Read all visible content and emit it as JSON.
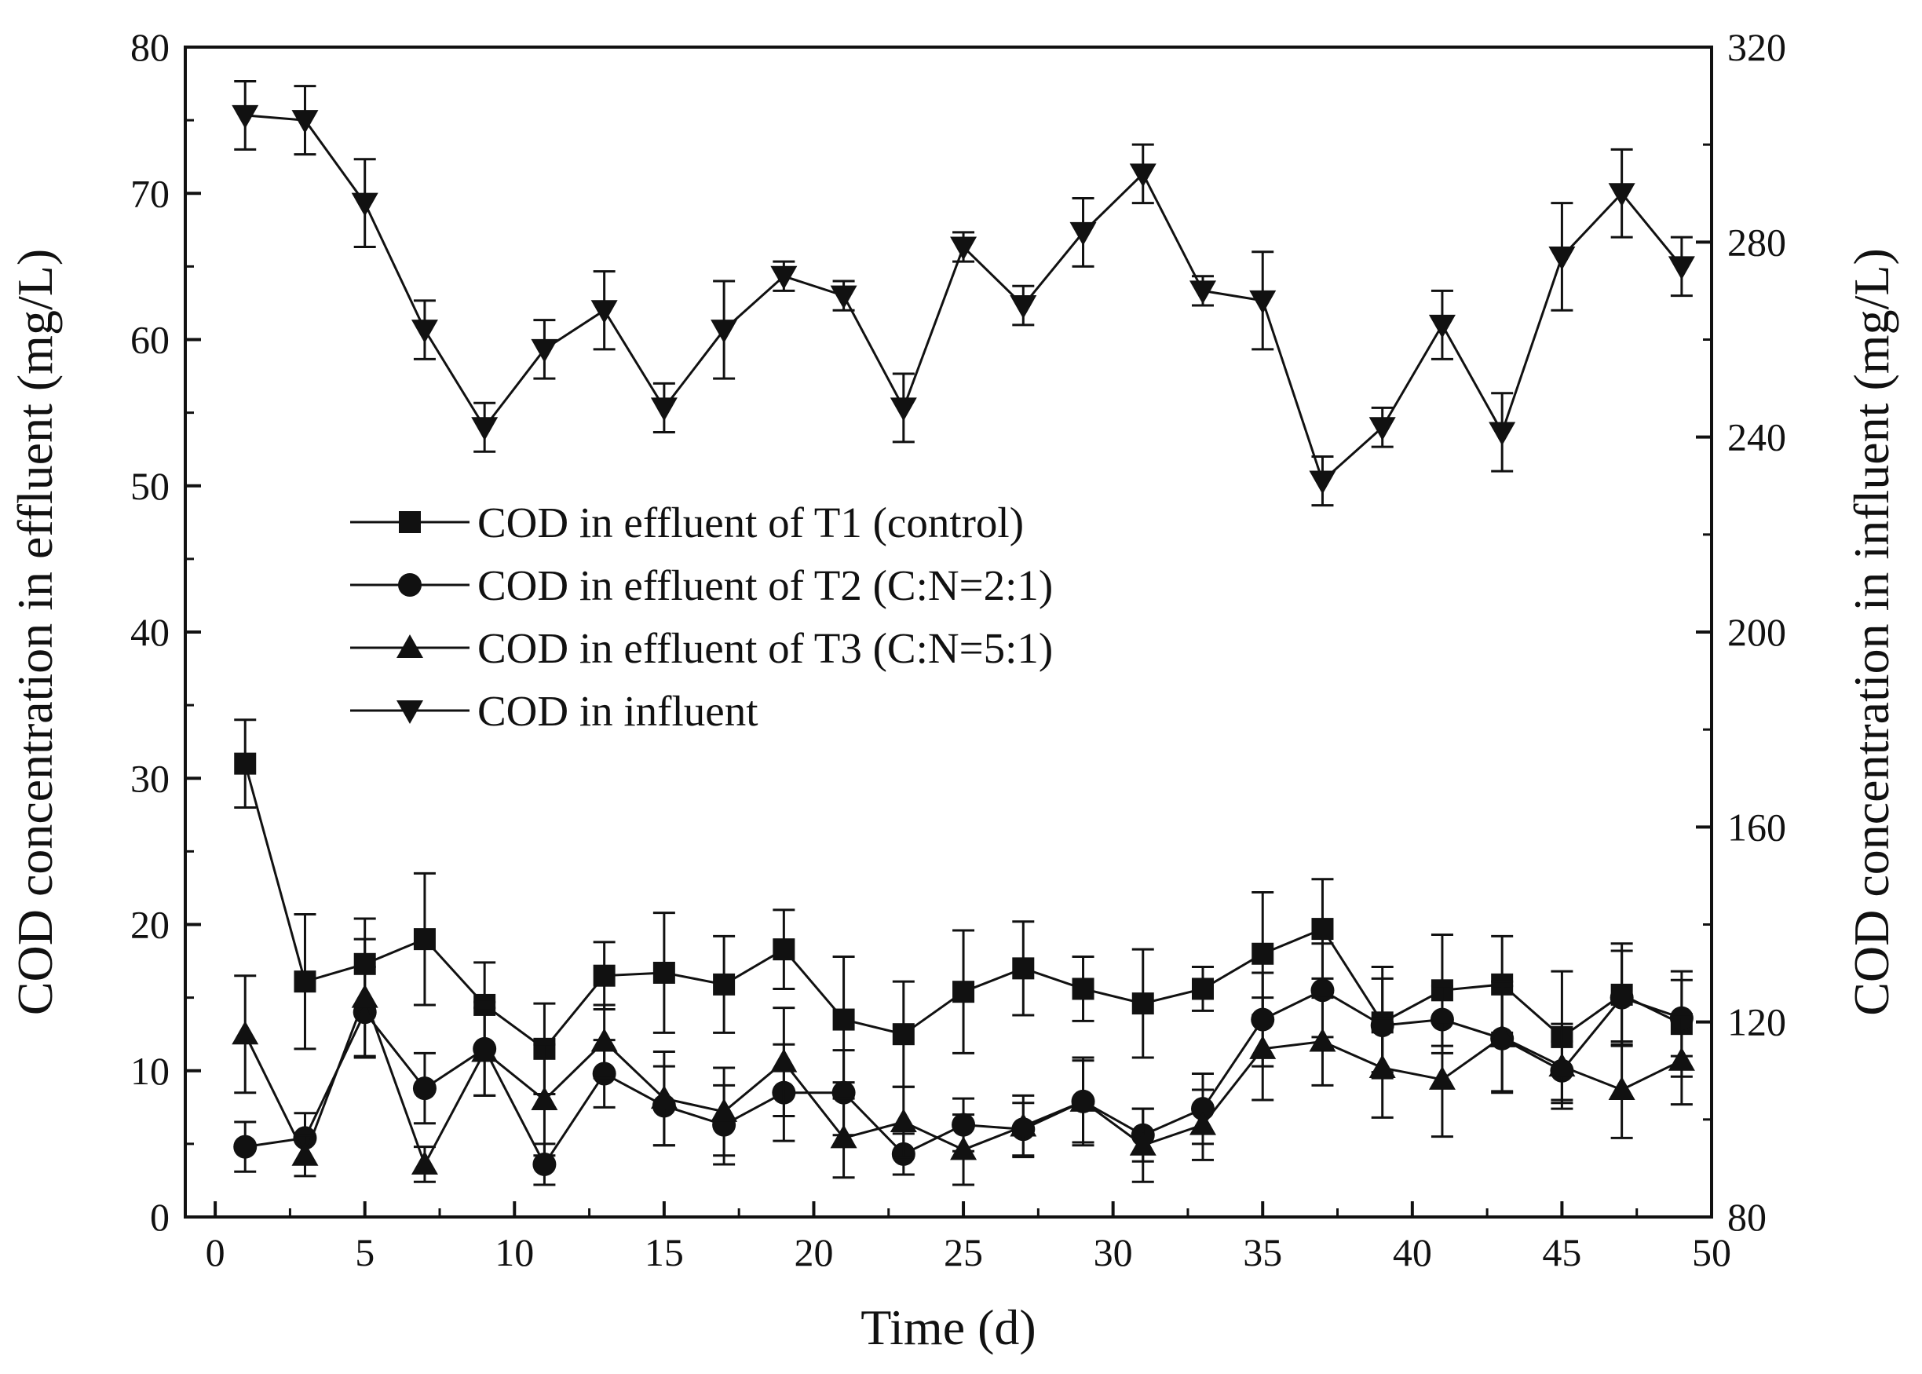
{
  "chart_data": {
    "type": "line",
    "title": "",
    "xlabel": "Time (d)",
    "ylabel": "COD concentration in effluent (mg/L)",
    "y2label": "COD concentration in influent (mg/L)",
    "xlim": [
      -1,
      50
    ],
    "ylim": [
      0,
      80
    ],
    "y2lim": [
      80,
      320
    ],
    "xticks": [
      0,
      5,
      10,
      15,
      20,
      25,
      30,
      35,
      40,
      45,
      50
    ],
    "yticks": [
      0,
      10,
      20,
      30,
      40,
      50,
      60,
      70,
      80
    ],
    "y2ticks": [
      80,
      120,
      160,
      200,
      240,
      280,
      320
    ],
    "legend_position": "center-left",
    "x": [
      1,
      3,
      5,
      7,
      9,
      11,
      13,
      15,
      17,
      19,
      21,
      23,
      25,
      27,
      29,
      31,
      33,
      35,
      37,
      39,
      41,
      43,
      45,
      47,
      49
    ],
    "series": [
      {
        "name": "COD in effluent of T1 (control)",
        "marker": "square",
        "axis": "left",
        "values": [
          31.0,
          16.1,
          17.3,
          19.0,
          14.5,
          11.5,
          16.5,
          16.7,
          15.9,
          18.3,
          13.5,
          12.5,
          15.4,
          17.0,
          15.6,
          14.6,
          15.6,
          18.0,
          19.7,
          13.3,
          15.5,
          15.9,
          12.3,
          15.2,
          13.2
        ],
        "errors": [
          3.0,
          4.6,
          3.1,
          4.5,
          2.9,
          3.1,
          2.3,
          4.1,
          3.3,
          2.7,
          4.3,
          3.6,
          4.2,
          3.2,
          2.2,
          3.7,
          1.5,
          4.2,
          3.4,
          3.8,
          3.8,
          3.3,
          4.5,
          3.5,
          3.6
        ]
      },
      {
        "name": "COD in effluent of T2 (C:N=2:1)",
        "marker": "circle",
        "axis": "left",
        "values": [
          4.8,
          5.4,
          14.0,
          8.8,
          11.5,
          3.6,
          9.8,
          7.6,
          6.3,
          8.5,
          8.5,
          4.3,
          6.3,
          6.0,
          7.9,
          5.6,
          7.4,
          13.5,
          15.5,
          13.1,
          13.5,
          12.2,
          10.0,
          15.0,
          13.6
        ],
        "errors": [
          1.7,
          1.7,
          3.1,
          2.4,
          3.2,
          1.4,
          2.3,
          2.7,
          2.7,
          3.3,
          2.9,
          1.4,
          1.8,
          1.8,
          2.8,
          1.8,
          2.4,
          3.2,
          3.2,
          3.2,
          2.3,
          3.6,
          2.0,
          3.2,
          2.6
        ]
      },
      {
        "name": "COD in effluent of T3 (C:N=5:1)",
        "marker": "triangle-up",
        "axis": "left",
        "values": [
          12.5,
          4.2,
          15.0,
          3.6,
          11.3,
          8.0,
          12.0,
          8.1,
          7.2,
          10.6,
          5.4,
          6.5,
          4.6,
          6.2,
          7.9,
          4.9,
          6.3,
          11.5,
          12.0,
          10.2,
          9.4,
          12.3,
          10.3,
          8.7,
          10.7
        ],
        "errors": [
          4.0,
          1.4,
          4.0,
          1.2,
          3.0,
          3.8,
          2.5,
          3.2,
          3.0,
          3.7,
          2.7,
          2.4,
          2.4,
          2.1,
          3.0,
          2.5,
          2.4,
          3.5,
          3.0,
          3.4,
          3.9,
          3.8,
          2.9,
          3.3,
          3.0
        ]
      },
      {
        "name": "COD in influent",
        "marker": "triangle-down",
        "axis": "right",
        "values": [
          306,
          305,
          288,
          262,
          242,
          258,
          266,
          246,
          262,
          273,
          269,
          246,
          279,
          267,
          282,
          294,
          270,
          268,
          231,
          242,
          263,
          241,
          277,
          290,
          275
        ],
        "errors": [
          7,
          7,
          9,
          6,
          5,
          6,
          8,
          5,
          10,
          3,
          3,
          7,
          3,
          4,
          7,
          6,
          3,
          10,
          5,
          4,
          7,
          8,
          11,
          9,
          6
        ]
      }
    ]
  }
}
